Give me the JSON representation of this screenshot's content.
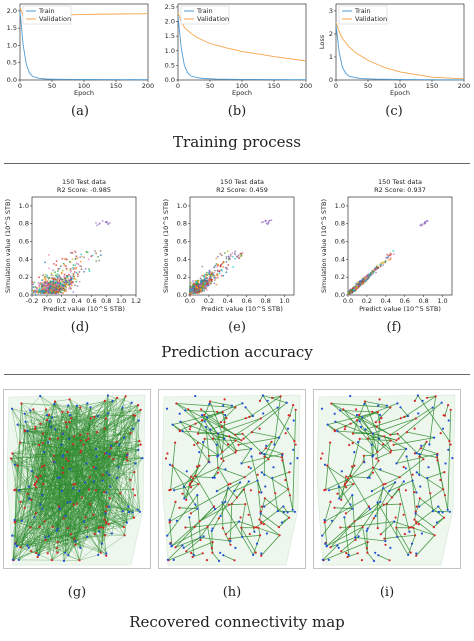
{
  "sections": {
    "training": "Training process",
    "prediction": "Prediction accuracy",
    "connectivity": "Recovered connectivity map"
  },
  "captions": [
    "(a)",
    "(b)",
    "(c)",
    "(d)",
    "(e)",
    "(f)",
    "(g)",
    "(h)",
    "(i)"
  ],
  "colors": {
    "train": "#4e9bd5",
    "validation": "#f5a54a",
    "edge": "#2e8b2e",
    "well_red": "#d62728",
    "well_blue": "#1f4fd6"
  },
  "chart_data": [
    {
      "type": "line",
      "id": "a",
      "xlabel": "Epoch",
      "ylabel": "",
      "xlim": [
        0,
        200
      ],
      "ylim": [
        0,
        2.2
      ],
      "xticks": [
        0,
        50,
        100,
        150,
        200
      ],
      "yticks": [
        "0.0",
        "0.5",
        "1.0",
        "1.5",
        "2.0"
      ],
      "legend": "top-left",
      "series": [
        {
          "name": "Train",
          "x": [
            0,
            5,
            10,
            15,
            20,
            30,
            40,
            60,
            100,
            150,
            200
          ],
          "y": [
            2.0,
            1.0,
            0.45,
            0.2,
            0.1,
            0.05,
            0.03,
            0.02,
            0.015,
            0.012,
            0.01
          ]
        },
        {
          "name": "Validation",
          "x": [
            0,
            5,
            10,
            20,
            30,
            50,
            100,
            150,
            200
          ],
          "y": [
            2.1,
            1.85,
            1.75,
            1.8,
            1.84,
            1.87,
            1.9,
            1.91,
            1.92
          ]
        }
      ]
    },
    {
      "type": "line",
      "id": "b",
      "xlabel": "Epoch",
      "ylabel": "",
      "xlim": [
        0,
        200
      ],
      "ylim": [
        0,
        2.6
      ],
      "xticks": [
        0,
        50,
        100,
        150,
        200
      ],
      "yticks": [
        "0.0",
        "0.5",
        "1.0",
        "1.5",
        "2.0",
        "2.5"
      ],
      "legend": "top-left",
      "series": [
        {
          "name": "Train",
          "x": [
            0,
            5,
            10,
            15,
            20,
            30,
            40,
            60,
            100,
            150,
            200
          ],
          "y": [
            2.2,
            1.1,
            0.5,
            0.25,
            0.14,
            0.08,
            0.05,
            0.03,
            0.02,
            0.015,
            0.01
          ]
        },
        {
          "name": "Validation",
          "x": [
            0,
            5,
            10,
            20,
            30,
            50,
            75,
            100,
            150,
            200
          ],
          "y": [
            2.3,
            2.0,
            1.8,
            1.6,
            1.45,
            1.25,
            1.1,
            0.98,
            0.8,
            0.65
          ]
        }
      ]
    },
    {
      "type": "line",
      "id": "c",
      "xlabel": "Epoch",
      "ylabel": "Loss",
      "xlim": [
        0,
        200
      ],
      "ylim": [
        0,
        3.3
      ],
      "xticks": [
        0,
        50,
        100,
        150,
        200
      ],
      "yticks": [
        "0",
        "1",
        "2",
        "3"
      ],
      "legend": "top-left",
      "series": [
        {
          "name": "Train",
          "x": [
            0,
            5,
            10,
            15,
            20,
            30,
            40,
            60,
            100,
            150,
            200
          ],
          "y": [
            2.4,
            1.2,
            0.55,
            0.3,
            0.17,
            0.1,
            0.06,
            0.04,
            0.02,
            0.015,
            0.01
          ]
        },
        {
          "name": "Validation",
          "x": [
            0,
            5,
            10,
            20,
            30,
            50,
            75,
            100,
            150,
            200
          ],
          "y": [
            2.5,
            2.1,
            1.8,
            1.45,
            1.2,
            0.85,
            0.55,
            0.35,
            0.12,
            0.05
          ]
        }
      ]
    },
    {
      "type": "scatter",
      "id": "d",
      "title": "150 Test data",
      "subtitle": "R2 Score: -0.985",
      "xlabel": "Predict value (10^5 STB)",
      "ylabel": "Simulation value (10^5 STB)",
      "xlim": [
        -0.2,
        1.2
      ],
      "ylim": [
        0,
        1.1
      ],
      "xticks": [
        "-0.2",
        "0.0",
        "0.2",
        "0.4",
        "0.6",
        "0.8",
        "1.0",
        "1.2"
      ],
      "yticks": [
        "0.0",
        "0.2",
        "0.4",
        "0.6",
        "0.8",
        "1.0"
      ],
      "spread": 0.15
    },
    {
      "type": "scatter",
      "id": "e",
      "title": "150 Test data",
      "subtitle": "R2 Score: 0.459",
      "xlabel": "Predict value (10^5 STB)",
      "ylabel": "Simulation value (10^5 STB)",
      "xlim": [
        0,
        1.1
      ],
      "ylim": [
        0,
        1.1
      ],
      "xticks": [
        "0.0",
        "0.2",
        "0.4",
        "0.6",
        "0.8",
        "1.0"
      ],
      "yticks": [
        "0.0",
        "0.2",
        "0.4",
        "0.6",
        "0.8",
        "1.0"
      ],
      "spread": 0.06
    },
    {
      "type": "scatter",
      "id": "f",
      "title": "150 Test data",
      "subtitle": "R2 Score: 0.937",
      "xlabel": "Predict value (10^5 STB)",
      "ylabel": "Simulation value (10^5 STB)",
      "xlim": [
        0,
        1.1
      ],
      "ylim": [
        0,
        1.1
      ],
      "xticks": [
        "0.0",
        "0.2",
        "0.4",
        "0.6",
        "0.8",
        "1.0"
      ],
      "yticks": [
        "0.0",
        "0.2",
        "0.4",
        "0.6",
        "0.8",
        "1.0"
      ],
      "spread": 0.018
    }
  ]
}
